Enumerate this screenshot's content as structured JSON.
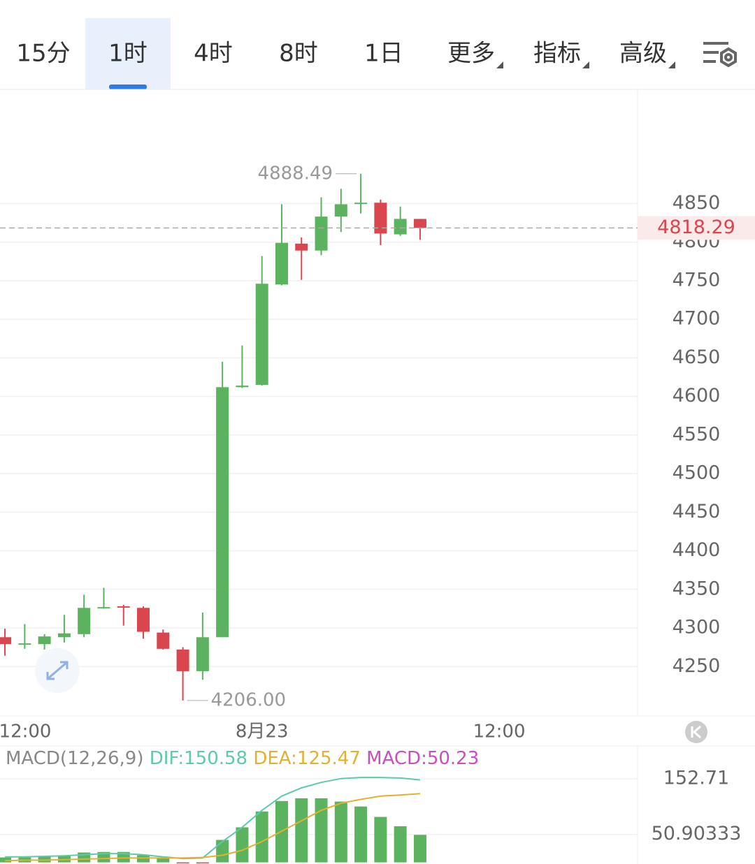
{
  "tabs": {
    "items": [
      "15分",
      "1时",
      "4时",
      "8时",
      "1日",
      "更多",
      "指标",
      "高级"
    ],
    "selected": 1
  },
  "chart_data": [
    {
      "type": "candlestick",
      "open": [
        4288,
        4279,
        4279,
        4288,
        4292,
        4326,
        4328,
        4326,
        4294,
        4272,
        4244,
        4288,
        4612,
        4615,
        4745,
        4798,
        4789,
        4833,
        4850,
        4851,
        4810,
        4830
      ],
      "high": [
        4299,
        4305,
        4292,
        4317,
        4343,
        4352,
        4330,
        4328,
        4298,
        4275,
        4320,
        4645,
        4666,
        4782,
        4849,
        4806,
        4858,
        4869,
        4888.49,
        4855,
        4846,
        4830
      ],
      "low": [
        4264,
        4273,
        4272,
        4281,
        4288,
        4325,
        4303,
        4286,
        4272,
        4206,
        4233,
        4288,
        4611,
        4614,
        4744,
        4751,
        4783,
        4813,
        4837,
        4796,
        4808,
        4803
      ],
      "close": [
        4279,
        4280,
        4289,
        4293,
        4326,
        4327,
        4327,
        4295,
        4273,
        4244,
        4288,
        4612,
        4614,
        4746,
        4799,
        4789,
        4833,
        4849,
        4851,
        4811,
        4830,
        4818.29
      ],
      "up_color": "#5bb35f",
      "down_color": "#d9464e",
      "ylim": [
        4186,
        4996
      ],
      "yticks": [
        4250,
        4300,
        4350,
        4400,
        4450,
        4500,
        4550,
        4600,
        4650,
        4700,
        4750,
        4800,
        4850
      ],
      "xlim": [
        -0.25,
        32
      ],
      "xticks": [
        {
          "value": 1,
          "label": "12:00"
        },
        {
          "value": 13,
          "label": "8月23"
        },
        {
          "value": 25,
          "label": "12:00"
        }
      ],
      "grid": true,
      "annotations": [
        {
          "value": 4888.49,
          "label": "4888.49"
        },
        {
          "value": 4206,
          "label": "4206.00"
        }
      ],
      "last_price": {
        "value": 4818.29,
        "label": "4818.29"
      }
    },
    {
      "type": "macd",
      "title": "MACD(12,26,9)",
      "series": [
        {
          "name": "DIF:150.58",
          "color": "#5ec9ad",
          "values": [
            10,
            10,
            11,
            12,
            14,
            16,
            16,
            14,
            10,
            7,
            8,
            38,
            64,
            95,
            121,
            136,
            146,
            153,
            155,
            155,
            154,
            150.58
          ]
        },
        {
          "name": "DEA:125.47",
          "color": "#e3b12e",
          "values": [
            3,
            4,
            4,
            5,
            6,
            7,
            8,
            8,
            8,
            8,
            9,
            13,
            22,
            38,
            57,
            76,
            95,
            108,
            115,
            121,
            123,
            125.47
          ]
        },
        {
          "name": "MACD:50.23",
          "color": "#c84fbf",
          "up_color": "#5bb35f",
          "down_color": "#d9464e",
          "values": [
            9,
            9,
            11,
            13,
            18,
            19,
            19,
            13,
            8,
            -2,
            -2,
            41,
            64,
            93,
            112,
            117,
            117,
            111,
            102,
            83,
            66,
            50.23
          ]
        }
      ],
      "ylim": [
        -3,
        210
      ],
      "yticks": [
        50.90333,
        152.71
      ]
    }
  ]
}
